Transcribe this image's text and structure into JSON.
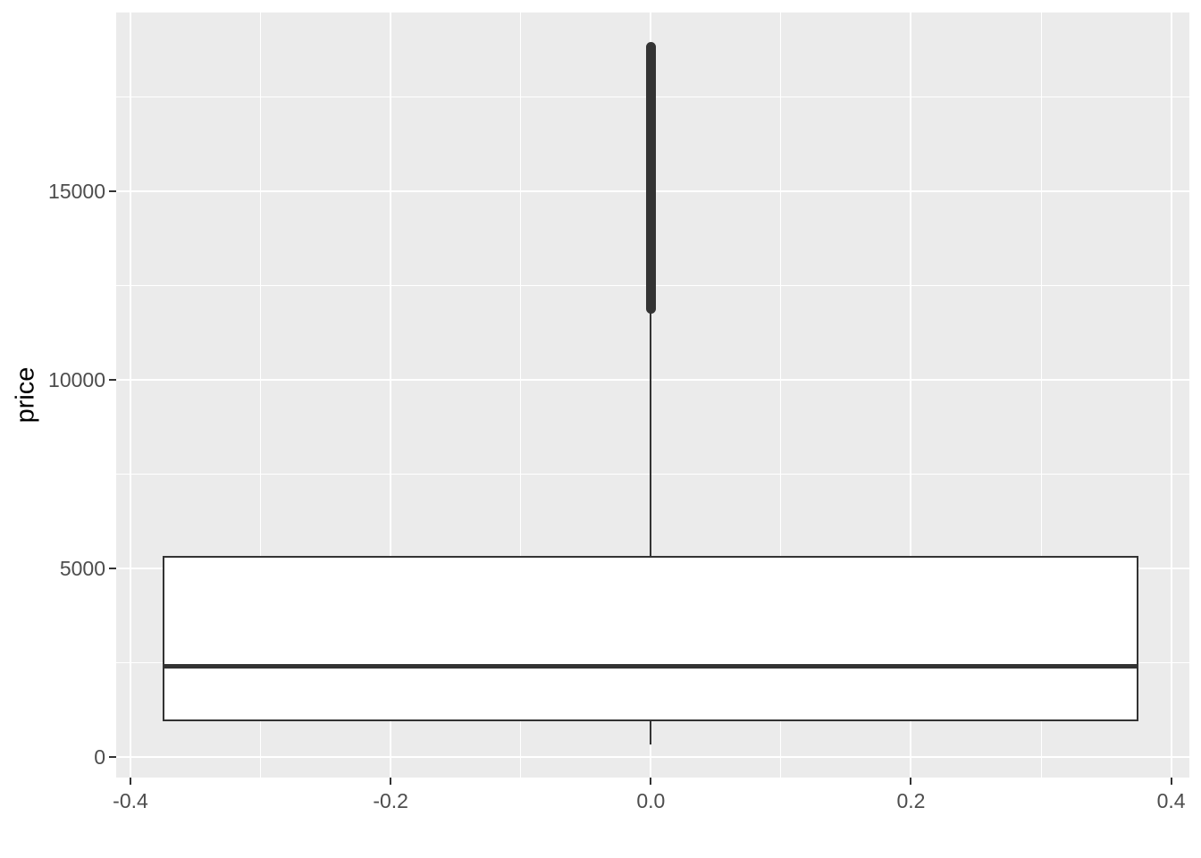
{
  "chart_data": {
    "type": "boxplot",
    "orientation": "vertical",
    "title": "",
    "xlabel": "",
    "ylabel": "price",
    "grid": true,
    "legend": "none",
    "panel_background": "#EBEBEB",
    "grid_color": "#FFFFFF",
    "stroke_color": "#333333",
    "box_fill": "#FFFFFF",
    "tick_label_color": "#4D4D4D",
    "axis_title_color": "#000000",
    "xlim": [
      -0.411,
      0.414
    ],
    "ylim": [
      -550,
      19740
    ],
    "x_tick_values": [
      -0.4,
      -0.2,
      0.0,
      0.2,
      0.4
    ],
    "x_tick_labels": [
      "-0.4",
      "-0.2",
      "0.0",
      "0.2",
      "0.4"
    ],
    "x_minor_values": [
      -0.3,
      -0.1,
      0.1,
      0.3
    ],
    "y_tick_values": [
      0,
      5000,
      10000,
      15000
    ],
    "y_tick_labels": [
      "0",
      "5000",
      "10000",
      "15000"
    ],
    "y_minor_values": [
      2500,
      7500,
      12500,
      17500
    ],
    "box": {
      "x_center": 0,
      "box_half_width": 0.375,
      "min": 326,
      "q1": 950,
      "median": 2401,
      "q3": 5324,
      "whisker_low": 326,
      "whisker_high": 11886,
      "outlier_range": [
        11886,
        18823
      ]
    }
  }
}
